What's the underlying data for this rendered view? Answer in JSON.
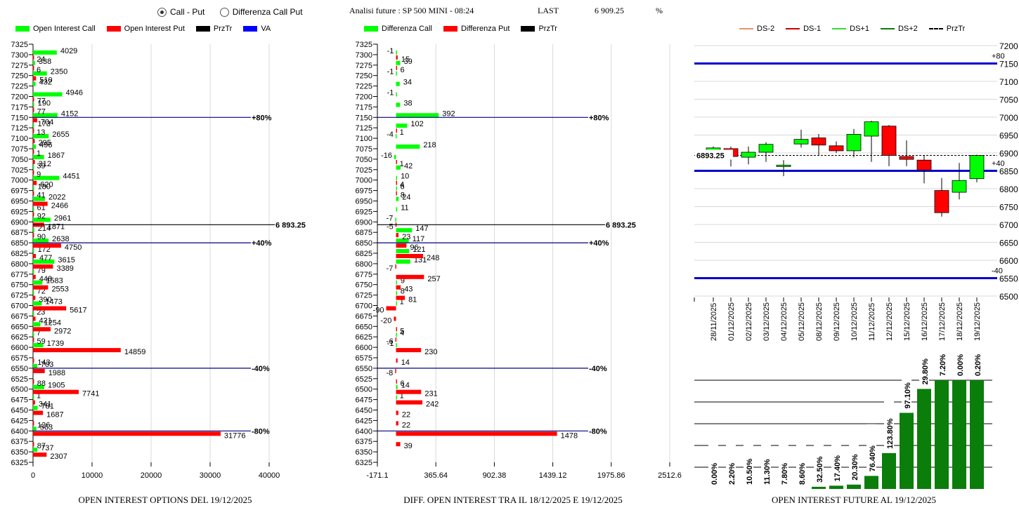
{
  "header": {
    "mode_options": [
      {
        "label": "Call - Put",
        "selected": true
      },
      {
        "label": "Differenza Call Put",
        "selected": false
      }
    ],
    "title": "Analisi future : SP 500 MINI - 08:24",
    "last_label": "LAST",
    "last_value": "6 909.25",
    "pct_label": "%"
  },
  "chart_data": [
    {
      "type": "bar",
      "orientation": "horizontal",
      "title": "OPEN INTEREST OPTIONS DEL 19/12/2025",
      "legend": [
        {
          "label": "Open Interest Call",
          "color": "#00ff00"
        },
        {
          "label": "Open Interest Put",
          "color": "#ff0000"
        },
        {
          "label": "PrzTr",
          "color": "#000000"
        },
        {
          "label": "VA",
          "color": "#0000ff"
        }
      ],
      "categories": [
        7325,
        7300,
        7275,
        7250,
        7225,
        7200,
        7175,
        7150,
        7125,
        7100,
        7075,
        7050,
        7025,
        7000,
        6975,
        6950,
        6925,
        6900,
        6875,
        6850,
        6825,
        6800,
        6775,
        6750,
        6725,
        6700,
        6675,
        6650,
        6625,
        6600,
        6575,
        6550,
        6525,
        6500,
        6475,
        6450,
        6425,
        6400,
        6375,
        6350,
        6325
      ],
      "series": [
        {
          "name": "Open Interest Call",
          "color": "#00ff00",
          "values": [
            null,
            4029,
            338,
            2350,
            432,
            4946,
            190,
            4152,
            173,
            2655,
            496,
            1867,
            39,
            4451,
            180,
            2022,
            61,
            2961,
            214,
            2638,
            172,
            3615,
            79,
            1583,
            72,
            1473,
            23,
            1254,
            7,
            1739,
            null,
            703,
            null,
            1905,
            1,
            781,
            null,
            563,
            null,
            737,
            null
          ]
        },
        {
          "name": "Open Interest Put",
          "color": "#ff0000",
          "values": [
            null,
            24,
            6,
            510,
            null,
            77,
            77,
            704,
            13,
            295,
            1,
            312,
            9,
            620,
            41,
            2466,
            92,
            1871,
            90,
            4750,
            477,
            3389,
            448,
            2553,
            390,
            5617,
            421,
            2972,
            59,
            14859,
            143,
            1988,
            88,
            7741,
            341,
            1687,
            126,
            31776,
            87,
            2307,
            null
          ]
        }
      ],
      "xlim": [
        0,
        40000
      ],
      "xticks": [
        "0",
        "10000",
        "20000",
        "30000",
        "40000"
      ],
      "lines": [
        {
          "label": "+80%",
          "strike": 7150,
          "color": "#000080"
        },
        {
          "label": "6 893.25",
          "strike": 6893.25,
          "color": "#000000"
        },
        {
          "label": "+40%",
          "strike": 6850,
          "color": "#000080"
        },
        {
          "label": "-40%",
          "strike": 6550,
          "color": "#000080"
        },
        {
          "label": "-80%",
          "strike": 6400,
          "color": "#000080"
        }
      ]
    },
    {
      "type": "bar",
      "orientation": "horizontal",
      "title": "DIFF. OPEN INTEREST TRA IL 18/12/2025 E 19/12/2025",
      "legend": [
        {
          "label": "Differenza Call",
          "color": "#00ff00"
        },
        {
          "label": "Differenza Put",
          "color": "#ff0000"
        },
        {
          "label": "PrzTr",
          "color": "#000000"
        }
      ],
      "categories": [
        7325,
        7300,
        7275,
        7250,
        7225,
        7200,
        7175,
        7150,
        7125,
        7100,
        7075,
        7050,
        7025,
        7000,
        6975,
        6950,
        6925,
        6900,
        6875,
        6850,
        6825,
        6800,
        6775,
        6750,
        6725,
        6700,
        6675,
        6650,
        6625,
        6600,
        6575,
        6550,
        6525,
        6500,
        6475,
        6450,
        6425,
        6400,
        6375,
        6350,
        6325
      ],
      "series": [
        {
          "name": "Differenza Call",
          "color": "#00ff00",
          "values": [
            null,
            -1,
            39,
            -1,
            34,
            -1,
            38,
            392,
            102,
            -4,
            218,
            -16,
            42,
            10,
            6,
            24,
            11,
            -7,
            147,
            117,
            121,
            131,
            null,
            9,
            8,
            1,
            null,
            null,
            4,
            -1,
            null,
            null,
            null,
            14,
            1,
            null,
            null,
            null,
            null,
            null,
            null
          ]
        },
        {
          "name": "Differenza Put",
          "color": "#ff0000",
          "values": [
            null,
            15,
            6,
            null,
            null,
            null,
            null,
            null,
            1,
            null,
            null,
            1,
            null,
            4,
            8,
            null,
            null,
            -5,
            23,
            96,
            248,
            -7,
            257,
            43,
            81,
            -90,
            -20,
            5,
            -6,
            230,
            14,
            -8,
            6,
            231,
            242,
            22,
            22,
            1478,
            39,
            null,
            null
          ]
        }
      ],
      "xlim": [
        -171.1,
        2512.6
      ],
      "xticks": [
        "-171.1",
        "365.64",
        "902.38",
        "1439.12",
        "1975.86",
        "2512.6"
      ],
      "lines": [
        {
          "label": "+80%",
          "strike": 7150,
          "color": "#000080"
        },
        {
          "label": "6 893.25",
          "strike": 6893.25,
          "color": "#000000"
        },
        {
          "label": "+40%",
          "strike": 6850,
          "color": "#000080"
        },
        {
          "label": "-40%",
          "strike": 6550,
          "color": "#000080"
        },
        {
          "label": "-80%",
          "strike": 6400,
          "color": "#000080"
        }
      ]
    },
    {
      "type": "candlestick",
      "title": "",
      "legend": [
        {
          "label": "DS-2",
          "color": "#e8946c",
          "style": "solid"
        },
        {
          "label": "DS-1",
          "color": "#cc0000",
          "style": "solid"
        },
        {
          "label": "DS+1",
          "color": "#33dd33",
          "style": "solid"
        },
        {
          "label": "DS+2",
          "color": "#0a7a0a",
          "style": "solid"
        },
        {
          "label": "PrzTr",
          "color": "#000000",
          "style": "dashed"
        }
      ],
      "ylim": [
        6500,
        7200
      ],
      "yticks": [
        7200,
        7150,
        7100,
        7050,
        7000,
        6950,
        6900,
        6850,
        6800,
        6750,
        6700,
        6650,
        6600,
        6550,
        6500
      ],
      "x": [
        "28/11/2025",
        "01/12/2025",
        "02/12/2025",
        "03/12/2025",
        "04/12/2025",
        "05/12/2025",
        "08/12/2025",
        "09/12/2025",
        "10/12/2025",
        "11/12/2025",
        "12/12/2025",
        "15/12/2025",
        "16/12/2025",
        "17/12/2025",
        "18/12/2025",
        "19/12/2025"
      ],
      "candles": [
        {
          "open": 6908,
          "close": 6914,
          "high": 6918,
          "low": 6908
        },
        {
          "open": 6912,
          "close": 6890,
          "high": 6918,
          "low": 6862
        },
        {
          "open": 6888,
          "close": 6902,
          "high": 6918,
          "low": 6868
        },
        {
          "open": 6902,
          "close": 6924,
          "high": 6930,
          "low": 6875
        },
        {
          "open": 6862,
          "close": 6866,
          "high": 6880,
          "low": 6835
        },
        {
          "open": 6925,
          "close": 6938,
          "high": 6965,
          "low": 6915
        },
        {
          "open": 6942,
          "close": 6922,
          "high": 6953,
          "low": 6893
        },
        {
          "open": 6920,
          "close": 6906,
          "high": 6932,
          "low": 6900
        },
        {
          "open": 6906,
          "close": 6952,
          "high": 6967,
          "low": 6888
        },
        {
          "open": 6947,
          "close": 6987,
          "high": 6990,
          "low": 6875
        },
        {
          "open": 6975,
          "close": 6893,
          "high": 6978,
          "low": 6863
        },
        {
          "open": 6890,
          "close": 6882,
          "high": 6935,
          "low": 6863
        },
        {
          "open": 6880,
          "close": 6852,
          "high": 6893,
          "low": 6815
        },
        {
          "open": 6795,
          "close": 6733,
          "high": 6830,
          "low": 6722
        },
        {
          "open": 6790,
          "close": 6823,
          "high": 6872,
          "low": 6770
        },
        {
          "open": 6828,
          "close": 6893,
          "high": 6895,
          "low": 6818
        }
      ],
      "hlines": [
        {
          "label": "+80",
          "value": 7150,
          "color": "#0000cc"
        },
        {
          "label": "+40",
          "value": 6850,
          "color": "#0000cc"
        },
        {
          "label": "-40",
          "value": 6550,
          "color": "#0000cc"
        }
      ],
      "przTr": 6893.25,
      "przTr_label": "6893.25"
    },
    {
      "type": "bar",
      "title": "OPEN INTEREST FUTURE AL 19/12/2025",
      "categories": [
        "28/11/2025",
        "01/12/2025",
        "02/12/2025",
        "03/12/2025",
        "04/12/2025",
        "05/12/2025",
        "08/12/2025",
        "09/12/2025",
        "10/12/2025",
        "11/12/2025",
        "12/12/2025",
        "15/12/2025",
        "16/12/2025",
        "17/12/2025",
        "18/12/2025",
        "19/12/2025"
      ],
      "labels": [
        "0.00%",
        "2.20%",
        "10.50%",
        "11.30%",
        "7.80%",
        "8.60%",
        "32.50%",
        "17.40%",
        "20.30%",
        "76.40%",
        "123.80%",
        "97.10%",
        "29.80%",
        "7.20%",
        "0.00%",
        "0.20%"
      ],
      "values": [
        0,
        0,
        0,
        0,
        0,
        0,
        2,
        3,
        4,
        12,
        33,
        70,
        92,
        100,
        100,
        100
      ],
      "ylim": [
        0,
        100
      ],
      "color": "#0a7d0a"
    }
  ]
}
